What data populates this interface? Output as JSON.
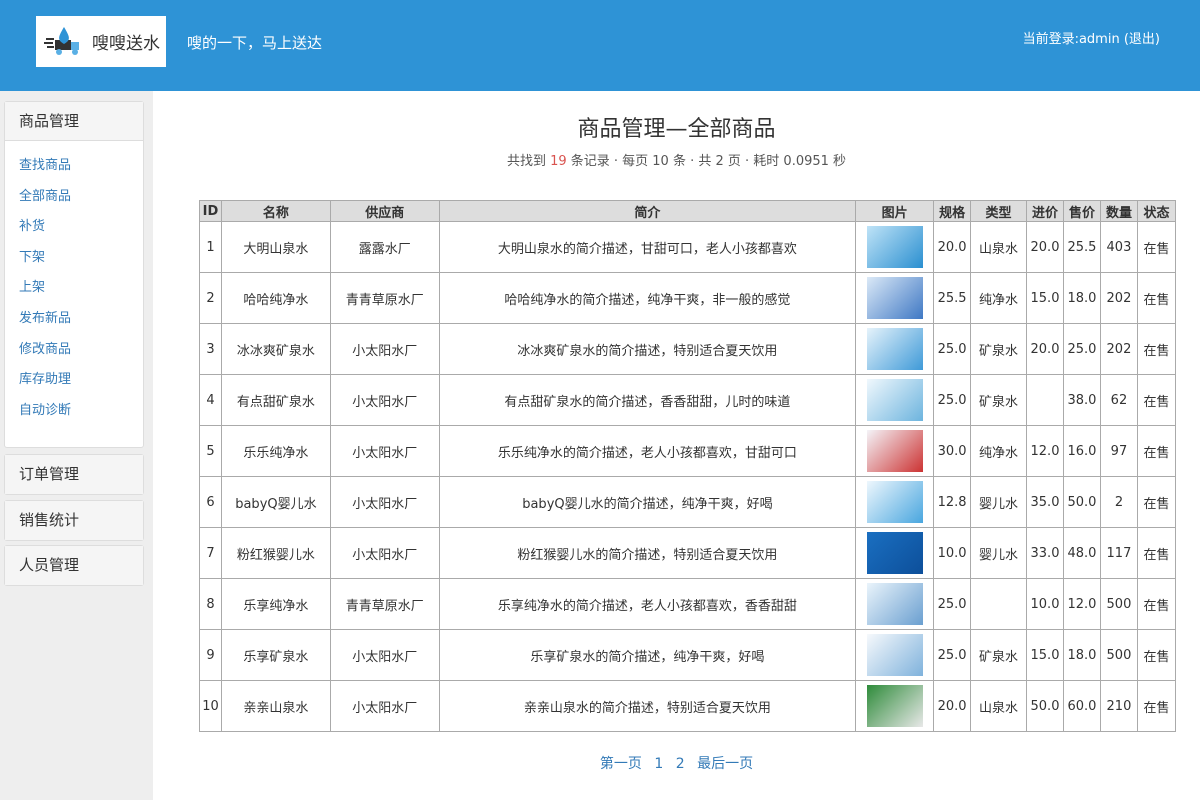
{
  "header": {
    "logo_text": "嗖嗖送水",
    "slogan": "嗖的一下，马上送达",
    "login_prefix": "当前登录:",
    "user": "admin",
    "logout": "(退出)",
    "bg_color": "#2e93d6"
  },
  "sidebar": {
    "product_panel": {
      "title": "商品管理",
      "items": [
        "查找商品",
        "全部商品",
        "补货",
        "下架",
        "上架",
        "发布新品",
        "修改商品",
        "库存助理",
        "自动诊断"
      ]
    },
    "panels": [
      "订单管理",
      "销售统计",
      "人员管理"
    ]
  },
  "main": {
    "title": "商品管理—全部商品",
    "summary": {
      "pre": "共找到 ",
      "count": "19",
      "post": " 条记录 · 每页 10 条 · 共 2 页 · 耗时 0.0951 秒"
    },
    "table": {
      "headers": [
        "ID",
        "名称",
        "供应商",
        "简介",
        "图片",
        "规格",
        "类型",
        "进价",
        "售价",
        "数量",
        "状态"
      ],
      "rows": [
        [
          "1",
          "大明山泉水",
          "露露水厂",
          "大明山泉水的简介描述，甘甜可口，老人小孩都喜欢",
          "",
          "20.0",
          "山泉水",
          "20.0",
          "25.5",
          "403",
          "在售"
        ],
        [
          "2",
          "哈哈纯净水",
          "青青草原水厂",
          "哈哈纯净水的简介描述，纯净干爽，非一般的感觉",
          "",
          "25.5",
          "纯净水",
          "15.0",
          "18.0",
          "202",
          "在售"
        ],
        [
          "3",
          "冰冰爽矿泉水",
          "小太阳水厂",
          "冰冰爽矿泉水的简介描述，特别适合夏天饮用",
          "",
          "25.0",
          "矿泉水",
          "20.0",
          "25.0",
          "202",
          "在售"
        ],
        [
          "4",
          "有点甜矿泉水",
          "小太阳水厂",
          "有点甜矿泉水的简介描述，香香甜甜，儿时的味道",
          "",
          "25.0",
          "矿泉水",
          "",
          "38.0",
          "62",
          "在售"
        ],
        [
          "5",
          "乐乐纯净水",
          "小太阳水厂",
          "乐乐纯净水的简介描述，老人小孩都喜欢，甘甜可口",
          "",
          "30.0",
          "纯净水",
          "12.0",
          "16.0",
          "97",
          "在售"
        ],
        [
          "6",
          "babyQ婴儿水",
          "小太阳水厂",
          "babyQ婴儿水的简介描述，纯净干爽，好喝",
          "",
          "12.8",
          "婴儿水",
          "35.0",
          "50.0",
          "2",
          "在售"
        ],
        [
          "7",
          "粉红猴婴儿水",
          "小太阳水厂",
          "粉红猴婴儿水的简介描述，特别适合夏天饮用",
          "",
          "10.0",
          "婴儿水",
          "33.0",
          "48.0",
          "117",
          "在售"
        ],
        [
          "8",
          "乐享纯净水",
          "青青草原水厂",
          "乐享纯净水的简介描述，老人小孩都喜欢，香香甜甜",
          "",
          "25.0",
          "",
          "10.0",
          "12.0",
          "500",
          "在售"
        ],
        [
          "9",
          "乐享矿泉水",
          "小太阳水厂",
          "乐享矿泉水的简介描述，纯净干爽，好喝",
          "",
          "25.0",
          "矿泉水",
          "15.0",
          "18.0",
          "500",
          "在售"
        ],
        [
          "10",
          "亲亲山泉水",
          "小太阳水厂",
          "亲亲山泉水的简介描述，特别适合夏天饮用",
          "",
          "20.0",
          "山泉水",
          "50.0",
          "60.0",
          "210",
          "在售"
        ]
      ]
    },
    "pager": [
      "第一页",
      "1",
      "2",
      "最后一页"
    ]
  }
}
